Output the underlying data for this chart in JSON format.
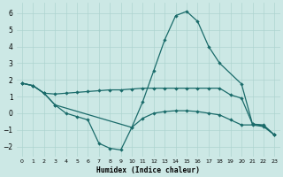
{
  "xlabel": "Humidex (Indice chaleur)",
  "bg_color": "#cce8e5",
  "grid_color": "#aed4d0",
  "line_color": "#1a6b6a",
  "xlim": [
    -0.5,
    23.5
  ],
  "ylim": [
    -2.6,
    6.6
  ],
  "yticks": [
    -2,
    -1,
    0,
    1,
    2,
    3,
    4,
    5,
    6
  ],
  "xticks": [
    0,
    1,
    2,
    3,
    4,
    5,
    6,
    7,
    8,
    9,
    10,
    11,
    12,
    13,
    14,
    15,
    16,
    17,
    18,
    19,
    20,
    21,
    22,
    23
  ],
  "series1_x": [
    0,
    1,
    2,
    3,
    4,
    5,
    6,
    7,
    8,
    9,
    10,
    11,
    12,
    13,
    14,
    15,
    16,
    17,
    18,
    19,
    20,
    21,
    22,
    23
  ],
  "series1_y": [
    1.8,
    1.65,
    1.2,
    1.15,
    1.2,
    1.25,
    1.3,
    1.35,
    1.4,
    1.4,
    1.45,
    1.5,
    1.5,
    1.5,
    1.5,
    1.5,
    1.5,
    1.5,
    1.5,
    1.1,
    0.9,
    -0.65,
    -0.75,
    -1.3
  ],
  "series2_x": [
    0,
    1,
    2,
    3,
    10,
    11,
    12,
    13,
    14,
    15,
    16,
    17,
    18,
    20,
    21,
    22,
    23
  ],
  "series2_y": [
    1.8,
    1.65,
    1.2,
    0.5,
    -0.85,
    0.7,
    2.55,
    4.4,
    5.85,
    6.1,
    5.5,
    4.0,
    3.0,
    1.75,
    -0.65,
    -0.7,
    -1.3
  ],
  "series3_x": [
    0,
    1,
    2,
    3,
    4,
    5,
    6,
    7,
    8,
    9,
    10,
    11,
    12,
    13,
    14,
    15,
    16,
    17,
    18,
    19,
    20,
    21,
    22,
    23
  ],
  "series3_y": [
    1.8,
    1.65,
    1.2,
    0.5,
    0.0,
    -0.2,
    -0.4,
    -1.8,
    -2.1,
    -2.2,
    -0.85,
    -0.3,
    0.0,
    0.1,
    0.15,
    0.15,
    0.1,
    0.0,
    -0.1,
    -0.4,
    -0.7,
    -0.7,
    -0.8,
    -1.3
  ]
}
